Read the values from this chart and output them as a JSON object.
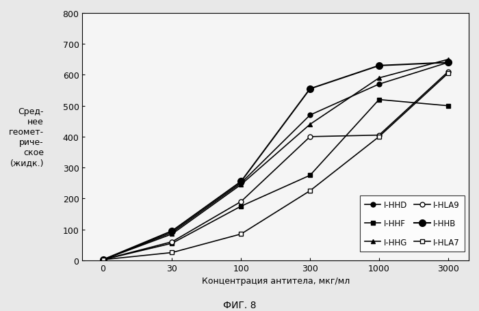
{
  "x_labels": [
    "0",
    "30",
    "100",
    "300",
    "1000",
    "3000"
  ],
  "x_indices": [
    0,
    1,
    2,
    3,
    4,
    5
  ],
  "series": {
    "I-HHD": [
      2,
      90,
      250,
      470,
      570,
      640
    ],
    "I-HHF": [
      2,
      55,
      175,
      275,
      520,
      500
    ],
    "I-HHG": [
      2,
      85,
      245,
      440,
      590,
      650
    ],
    "I-HLA9": [
      2,
      60,
      190,
      400,
      405,
      610
    ],
    "I-HHB": [
      2,
      95,
      255,
      555,
      630,
      640
    ],
    "I-HLA7": [
      2,
      25,
      85,
      225,
      400,
      605
    ]
  },
  "series_styles": {
    "I-HHD": {
      "marker": "o",
      "mfc": "black",
      "mec": "black",
      "ms": 5,
      "lw": 1.2
    },
    "I-HHF": {
      "marker": "s",
      "mfc": "black",
      "mec": "black",
      "ms": 5,
      "lw": 1.2
    },
    "I-HHG": {
      "marker": "^",
      "mfc": "black",
      "mec": "black",
      "ms": 5,
      "lw": 1.2
    },
    "I-HLA9": {
      "marker": "o",
      "mfc": "white",
      "mec": "black",
      "ms": 5,
      "lw": 1.2
    },
    "I-HHB": {
      "marker": "o",
      "mfc": "black",
      "mec": "black",
      "ms": 7,
      "lw": 1.5
    },
    "I-HLA7": {
      "marker": "s",
      "mfc": "white",
      "mec": "black",
      "ms": 5,
      "lw": 1.2
    }
  },
  "ylabel_lines": [
    "Сред-",
    "нее",
    "геомет-",
    "риче-",
    "ское",
    "(жидк.)"
  ],
  "xlabel": "Концентрация антитела, мкг/мл",
  "title": "ФИГ. 8",
  "ylim": [
    0,
    800
  ],
  "yticks": [
    0,
    100,
    200,
    300,
    400,
    500,
    600,
    700,
    800
  ],
  "background_color": "#f0f0f0",
  "legend_order": [
    "I-HHD",
    "I-HHF",
    "I-HHG",
    "I-HLA9",
    "I-HHB",
    "I-HLA7"
  ]
}
